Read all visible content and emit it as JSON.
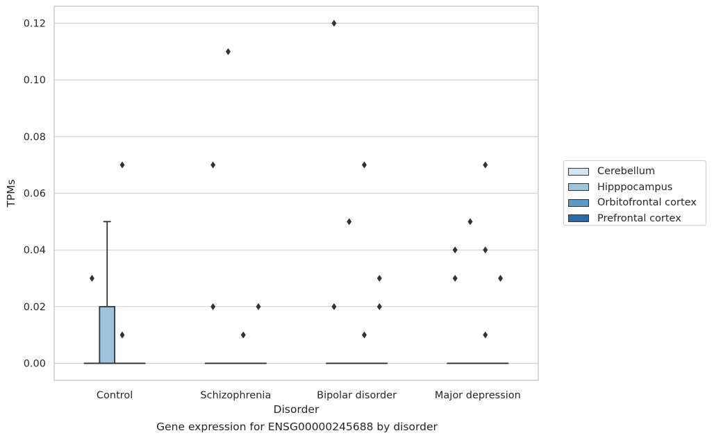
{
  "chart_data": {
    "type": "box",
    "caption": "Gene expression for ENSG00000245688 by disorder",
    "xlabel": "Disorder",
    "ylabel": "TPMs",
    "ylim": [
      -0.006,
      0.126
    ],
    "yticks": [
      0.0,
      0.02,
      0.04,
      0.06,
      0.08,
      0.1,
      0.12
    ],
    "ytick_labels": [
      "0.00",
      "0.02",
      "0.04",
      "0.06",
      "0.08",
      "0.10",
      "0.12"
    ],
    "categories": [
      "Control",
      "Schizophrenia",
      "Bipolar disorder",
      "Major depression"
    ],
    "grid": true,
    "legend_position": "outside right",
    "series": [
      {
        "name": "Cerebellum",
        "color": "#d5e4f1",
        "boxes": [
          {
            "q1": 0,
            "median": 0,
            "q3": 0,
            "whisker_low": 0,
            "whisker_high": 0,
            "outliers": [
              0.03
            ]
          },
          {
            "q1": 0,
            "median": 0,
            "q3": 0,
            "whisker_low": 0,
            "whisker_high": 0,
            "outliers": [
              0.07,
              0.02
            ]
          },
          {
            "q1": 0,
            "median": 0,
            "q3": 0,
            "whisker_low": 0,
            "whisker_high": 0,
            "outliers": [
              0.12,
              0.02
            ]
          },
          {
            "q1": 0,
            "median": 0,
            "q3": 0,
            "whisker_low": 0,
            "whisker_high": 0,
            "outliers": [
              0.04,
              0.03
            ]
          }
        ]
      },
      {
        "name": "Hipppocampus",
        "color": "#9dc3dd",
        "boxes": [
          {
            "q1": 0,
            "median": 0,
            "q3": 0.02,
            "whisker_low": 0,
            "whisker_high": 0.05,
            "outliers": []
          },
          {
            "q1": 0,
            "median": 0,
            "q3": 0,
            "whisker_low": 0,
            "whisker_high": 0,
            "outliers": [
              0.11
            ]
          },
          {
            "q1": 0,
            "median": 0,
            "q3": 0,
            "whisker_low": 0,
            "whisker_high": 0,
            "outliers": [
              0.05
            ]
          },
          {
            "q1": 0,
            "median": 0,
            "q3": 0,
            "whisker_low": 0,
            "whisker_high": 0,
            "outliers": [
              0.05
            ]
          }
        ]
      },
      {
        "name": "Orbitofrontal cortex",
        "color": "#5b9ac4",
        "boxes": [
          {
            "q1": 0,
            "median": 0,
            "q3": 0,
            "whisker_low": 0,
            "whisker_high": 0,
            "outliers": [
              0.07,
              0.01
            ]
          },
          {
            "q1": 0,
            "median": 0,
            "q3": 0,
            "whisker_low": 0,
            "whisker_high": 0,
            "outliers": [
              0.01
            ]
          },
          {
            "q1": 0,
            "median": 0,
            "q3": 0,
            "whisker_low": 0,
            "whisker_high": 0,
            "outliers": [
              0.07,
              0.01
            ]
          },
          {
            "q1": 0,
            "median": 0,
            "q3": 0,
            "whisker_low": 0,
            "whisker_high": 0,
            "outliers": [
              0.07,
              0.04,
              0.01
            ]
          }
        ]
      },
      {
        "name": "Prefrontal cortex",
        "color": "#2c6ba5",
        "boxes": [
          {
            "q1": 0,
            "median": 0,
            "q3": 0,
            "whisker_low": 0,
            "whisker_high": 0,
            "outliers": []
          },
          {
            "q1": 0,
            "median": 0,
            "q3": 0,
            "whisker_low": 0,
            "whisker_high": 0,
            "outliers": [
              0.02
            ]
          },
          {
            "q1": 0,
            "median": 0,
            "q3": 0,
            "whisker_low": 0,
            "whisker_high": 0,
            "outliers": [
              0.03,
              0.02
            ]
          },
          {
            "q1": 0,
            "median": 0,
            "q3": 0,
            "whisker_low": 0,
            "whisker_high": 0,
            "outliers": [
              0.03
            ]
          }
        ]
      }
    ]
  },
  "colors": {
    "grid": "#d0d0d0",
    "frame": "#cccccc",
    "box_edge": "#333333",
    "outlier": "#333333"
  }
}
